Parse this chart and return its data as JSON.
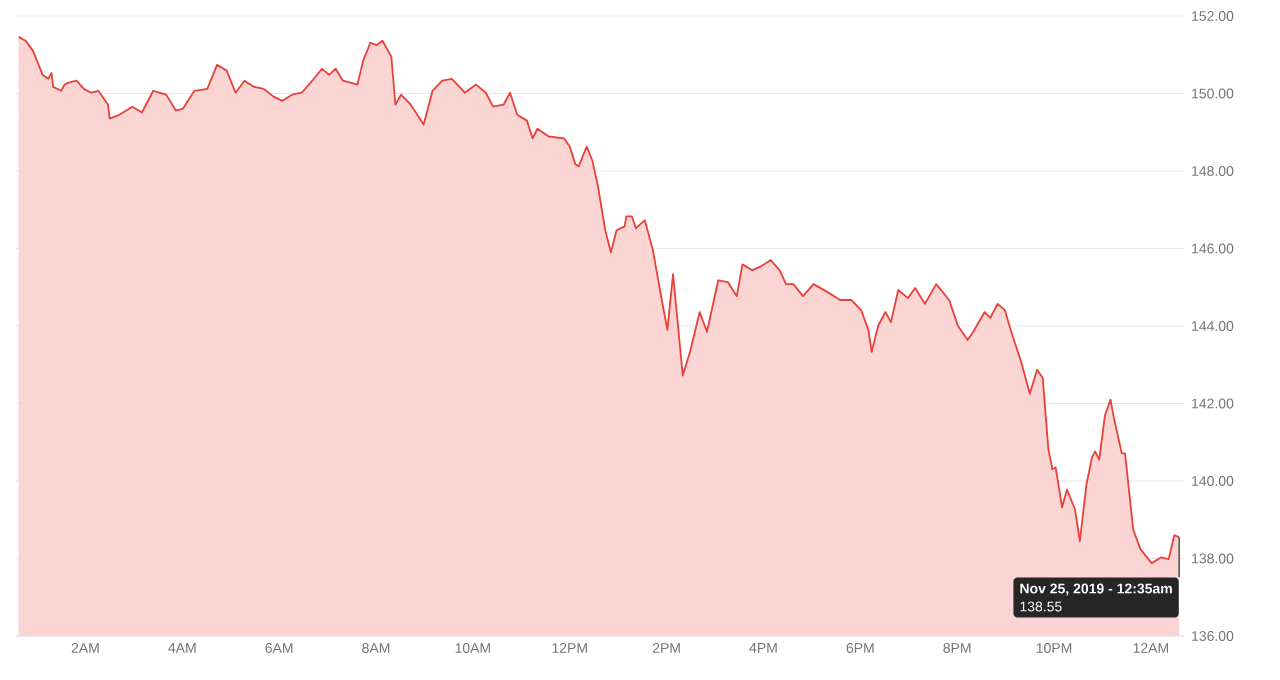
{
  "chart_data": {
    "type": "area",
    "color": "#e8413a",
    "grid": "y",
    "xlim": [
      "2019-11-24T00:34",
      "2019-11-25T00:41"
    ],
    "ylim": [
      136,
      152
    ],
    "xticks": [
      {
        "value": "2019-11-24T02:00",
        "label": "2AM"
      },
      {
        "value": "2019-11-24T04:00",
        "label": "4AM"
      },
      {
        "value": "2019-11-24T06:00",
        "label": "6AM"
      },
      {
        "value": "2019-11-24T08:00",
        "label": "8AM"
      },
      {
        "value": "2019-11-24T10:00",
        "label": "10AM"
      },
      {
        "value": "2019-11-24T12:00",
        "label": "12PM"
      },
      {
        "value": "2019-11-24T14:00",
        "label": "2PM"
      },
      {
        "value": "2019-11-24T16:00",
        "label": "4PM"
      },
      {
        "value": "2019-11-24T18:00",
        "label": "6PM"
      },
      {
        "value": "2019-11-24T20:00",
        "label": "8PM"
      },
      {
        "value": "2019-11-24T22:00",
        "label": "10PM"
      },
      {
        "value": "2019-11-25T00:00",
        "label": "12AM"
      }
    ],
    "yticks": [
      {
        "value": 136,
        "label": "136.00"
      },
      {
        "value": 138,
        "label": "138.00"
      },
      {
        "value": 140,
        "label": "140.00"
      },
      {
        "value": 142,
        "label": "142.00"
      },
      {
        "value": 144,
        "label": "144.00"
      },
      {
        "value": 146,
        "label": "146.00"
      },
      {
        "value": 148,
        "label": "148.00"
      },
      {
        "value": 150,
        "label": "150.00"
      },
      {
        "value": 152,
        "label": "152.00"
      }
    ],
    "x": [
      "2019-11-24T00:37",
      "2019-11-24T00:46",
      "2019-11-24T00:55",
      "2019-11-24T01:07",
      "2019-11-24T01:14",
      "2019-11-24T01:18",
      "2019-11-24T01:20",
      "2019-11-24T01:30",
      "2019-11-24T01:34",
      "2019-11-24T01:39",
      "2019-11-24T01:49",
      "2019-11-24T01:58",
      "2019-11-24T02:07",
      "2019-11-24T02:16",
      "2019-11-24T02:28",
      "2019-11-24T02:30",
      "2019-11-24T02:42",
      "2019-11-24T02:58",
      "2019-11-24T03:10",
      "2019-11-24T03:24",
      "2019-11-24T03:40",
      "2019-11-24T03:52",
      "2019-11-24T04:01",
      "2019-11-24T04:15",
      "2019-11-24T04:31",
      "2019-11-24T04:43",
      "2019-11-24T04:55",
      "2019-11-24T05:06",
      "2019-11-24T05:17",
      "2019-11-24T05:29",
      "2019-11-24T05:41",
      "2019-11-24T05:53",
      "2019-11-24T06:04",
      "2019-11-24T06:16",
      "2019-11-24T06:28",
      "2019-11-24T06:41",
      "2019-11-24T06:53",
      "2019-11-24T07:02",
      "2019-11-24T07:10",
      "2019-11-24T07:19",
      "2019-11-24T07:37",
      "2019-11-24T07:44",
      "2019-11-24T07:53",
      "2019-11-24T08:01",
      "2019-11-24T08:08",
      "2019-11-24T08:19",
      "2019-11-24T08:24",
      "2019-11-24T08:31",
      "2019-11-24T08:43",
      "2019-11-24T08:59",
      "2019-11-24T09:10",
      "2019-11-24T09:22",
      "2019-11-24T09:34",
      "2019-11-24T09:50",
      "2019-11-24T10:04",
      "2019-11-24T10:16",
      "2019-11-24T10:25",
      "2019-11-24T10:38",
      "2019-11-24T10:46",
      "2019-11-24T10:55",
      "2019-11-24T11:07",
      "2019-11-24T11:14",
      "2019-11-24T11:20",
      "2019-11-24T11:34",
      "2019-11-24T11:53",
      "2019-11-24T12:00",
      "2019-11-24T12:07",
      "2019-11-24T12:11",
      "2019-11-24T12:21",
      "2019-11-24T12:28",
      "2019-11-24T12:35",
      "2019-11-24T12:44",
      "2019-11-24T12:51",
      "2019-11-24T12:58",
      "2019-11-24T13:08",
      "2019-11-24T13:10",
      "2019-11-24T13:17",
      "2019-11-24T13:22",
      "2019-11-24T13:33",
      "2019-11-24T13:43",
      "2019-11-24T13:54",
      "2019-11-24T14:01",
      "2019-11-24T14:08",
      "2019-11-24T14:17",
      "2019-11-24T14:20",
      "2019-11-24T14:29",
      "2019-11-24T14:41",
      "2019-11-24T14:50",
      "2019-11-24T15:04",
      "2019-11-24T15:16",
      "2019-11-24T15:27",
      "2019-11-24T15:34",
      "2019-11-24T15:46",
      "2019-11-24T15:57",
      "2019-11-24T16:09",
      "2019-11-24T16:20",
      "2019-11-24T16:28",
      "2019-11-24T16:37",
      "2019-11-24T16:49",
      "2019-11-24T17:02",
      "2019-11-24T17:19",
      "2019-11-24T17:35",
      "2019-11-24T17:49",
      "2019-11-24T18:01",
      "2019-11-24T18:10",
      "2019-11-24T18:14",
      "2019-11-24T18:22",
      "2019-11-24T18:31",
      "2019-11-24T18:38",
      "2019-11-24T18:47",
      "2019-11-24T18:59",
      "2019-11-24T19:08",
      "2019-11-24T19:20",
      "2019-11-24T19:34",
      "2019-11-24T19:50",
      "2019-11-24T20:01",
      "2019-11-24T20:13",
      "2019-11-24T20:20",
      "2019-11-24T20:34",
      "2019-11-24T20:41",
      "2019-11-24T20:50",
      "2019-11-24T20:59",
      "2019-11-24T21:07",
      "2019-11-24T21:16",
      "2019-11-24T21:20",
      "2019-11-24T21:30",
      "2019-11-24T21:39",
      "2019-11-24T21:46",
      "2019-11-24T21:53",
      "2019-11-24T21:58",
      "2019-11-24T22:02",
      "2019-11-24T22:10",
      "2019-11-24T22:16",
      "2019-11-24T22:26",
      "2019-11-24T22:32",
      "2019-11-24T22:40",
      "2019-11-24T22:47",
      "2019-11-24T22:51",
      "2019-11-24T22:56",
      "2019-11-24T23:03",
      "2019-11-24T23:10",
      "2019-11-24T23:14",
      "2019-11-24T23:24",
      "2019-11-24T23:28",
      "2019-11-24T23:38",
      "2019-11-24T23:47",
      "2019-11-25T00:01",
      "2019-11-25T00:13",
      "2019-11-25T00:22",
      "2019-11-25T00:29",
      "2019-11-25T00:35"
    ],
    "values": [
      151.46,
      151.36,
      151.1,
      150.48,
      150.38,
      150.53,
      150.17,
      150.07,
      150.23,
      150.28,
      150.33,
      150.12,
      150.02,
      150.07,
      149.71,
      149.35,
      149.45,
      149.66,
      149.51,
      150.07,
      149.97,
      149.56,
      149.61,
      150.07,
      150.12,
      150.74,
      150.59,
      150.02,
      150.33,
      150.17,
      150.12,
      149.92,
      149.81,
      149.97,
      150.02,
      150.33,
      150.64,
      150.48,
      150.64,
      150.33,
      150.23,
      150.84,
      151.31,
      151.25,
      151.36,
      150.95,
      149.71,
      149.97,
      149.71,
      149.2,
      150.07,
      150.33,
      150.38,
      150.02,
      150.23,
      150.02,
      149.66,
      149.71,
      150.02,
      149.45,
      149.3,
      148.84,
      149.09,
      148.89,
      148.84,
      148.63,
      148.17,
      148.12,
      148.63,
      148.27,
      147.6,
      146.47,
      145.9,
      146.47,
      146.57,
      146.83,
      146.83,
      146.52,
      146.73,
      145.96,
      144.67,
      143.9,
      145.34,
      143.38,
      142.72,
      143.33,
      144.36,
      143.85,
      145.18,
      145.13,
      144.77,
      145.59,
      145.44,
      145.54,
      145.7,
      145.44,
      145.08,
      145.08,
      144.77,
      145.08,
      144.88,
      144.67,
      144.67,
      144.41,
      143.9,
      143.33,
      144.0,
      144.36,
      144.1,
      144.93,
      144.72,
      144.98,
      144.57,
      145.08,
      144.67,
      144.0,
      143.64,
      143.85,
      144.36,
      144.21,
      144.57,
      144.41,
      143.85,
      143.28,
      143.02,
      142.25,
      142.87,
      142.66,
      140.81,
      140.3,
      140.35,
      139.32,
      139.78,
      139.27,
      138.45,
      139.89,
      140.61,
      140.76,
      140.55,
      141.69,
      142.1,
      141.64,
      140.71,
      140.71,
      138.75,
      138.24,
      137.88,
      138.03,
      137.98,
      138.6,
      138.55
    ],
    "annotations": [
      {
        "text": "Nov 25, 2019 - 12:35am",
        "x": "2019-11-25T00:35",
        "y": 138.55
      },
      "138.55"
    ]
  }
}
